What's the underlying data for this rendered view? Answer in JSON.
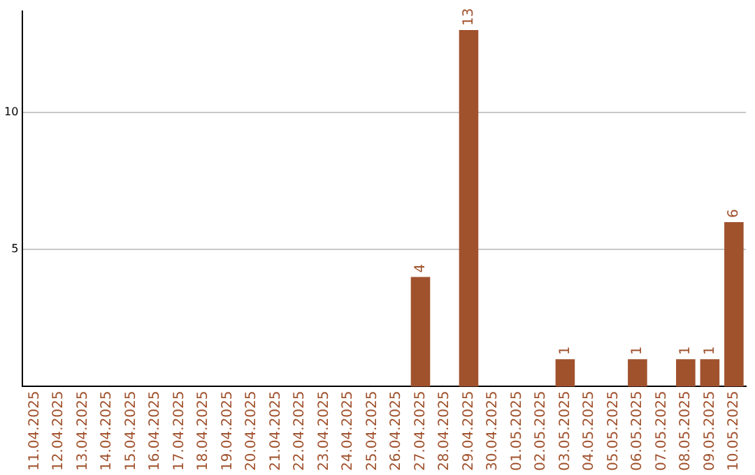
{
  "chart_data": {
    "type": "bar",
    "categories": [
      "11.04.2025",
      "12.04.2025",
      "13.04.2025",
      "14.04.2025",
      "15.04.2025",
      "16.04.2025",
      "17.04.2025",
      "18.04.2025",
      "19.04.2025",
      "20.04.2025",
      "21.04.2025",
      "22.04.2025",
      "23.04.2025",
      "24.04.2025",
      "25.04.2025",
      "26.04.2025",
      "27.04.2025",
      "28.04.2025",
      "29.04.2025",
      "30.04.2025",
      "01.05.2025",
      "02.05.2025",
      "03.05.2025",
      "04.05.2025",
      "05.05.2025",
      "06.05.2025",
      "07.05.2025",
      "08.05.2025",
      "09.05.2025",
      "10.05.2025"
    ],
    "values": [
      null,
      null,
      null,
      null,
      null,
      null,
      null,
      null,
      null,
      null,
      null,
      null,
      null,
      null,
      null,
      null,
      4,
      null,
      13,
      null,
      null,
      null,
      1,
      null,
      null,
      1,
      null,
      1,
      1,
      6
    ],
    "color": "#a0522d",
    "ylim": [
      0,
      13.7
    ],
    "yticks": [
      5,
      10
    ],
    "grid": "y",
    "data_labels": true,
    "legend": false
  }
}
